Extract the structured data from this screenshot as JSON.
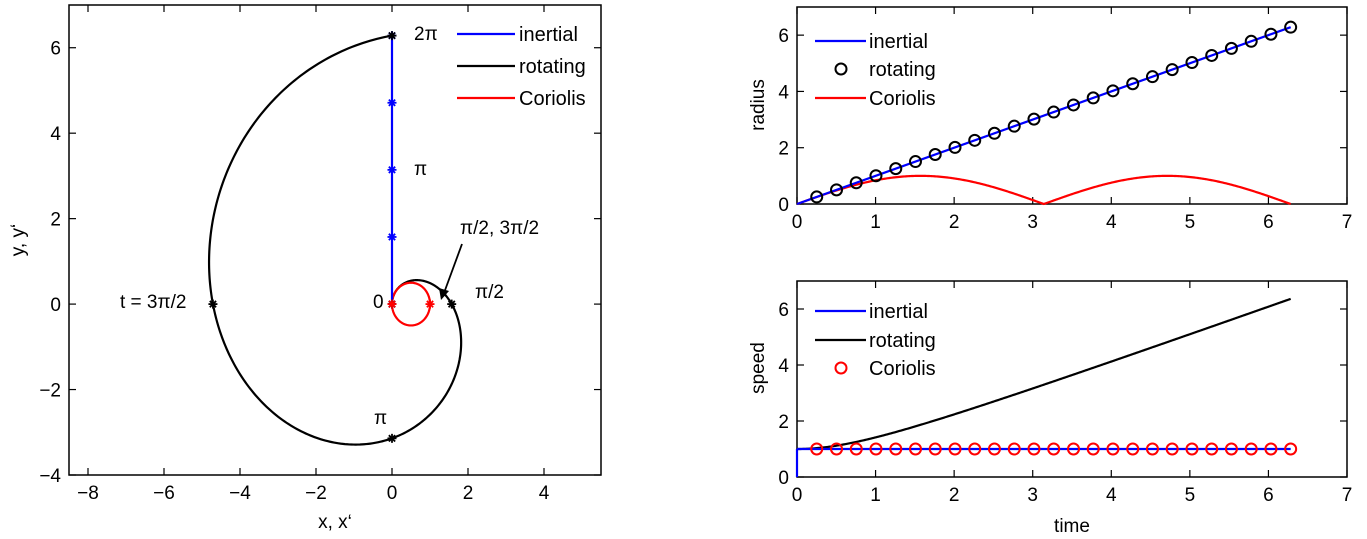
{
  "chart_data": [
    {
      "type": "line",
      "name": "trajectory",
      "xlabel": "x, x‘",
      "ylabel": "y, y‘",
      "xlim": [
        -8.5,
        5.5
      ],
      "ylim": [
        -4,
        7
      ],
      "xticks": [
        -8,
        -6,
        -4,
        -2,
        0,
        2,
        4
      ],
      "yticks": [
        -4,
        -2,
        0,
        2,
        4,
        6
      ],
      "grid": false,
      "legend_position": "top-right",
      "legend": [
        "inertial",
        "rotating",
        "Coriolis"
      ],
      "colors": {
        "inertial": "#0000ff",
        "rotating": "#000000",
        "Coriolis": "#ff0000"
      },
      "series": [
        {
          "name": "inertial",
          "description_equation": "x = 0, y = t, 0 ≤ t ≤ 2π",
          "markers_t": [
            0,
            1.5708,
            3.1416,
            4.7124,
            6.2832
          ],
          "markers": [
            [
              0,
              0
            ],
            [
              0,
              1.571
            ],
            [
              0,
              3.142
            ],
            [
              0,
              4.712
            ],
            [
              0,
              6.283
            ]
          ]
        },
        {
          "name": "rotating",
          "equation": "x' = t sin t, y' = t cos t, 0 ≤ t ≤ 2π",
          "markers": [
            [
              0,
              0
            ],
            [
              1.571,
              0
            ],
            [
              0,
              -3.142
            ],
            [
              -4.712,
              0
            ],
            [
              0,
              6.283
            ]
          ]
        },
        {
          "name": "Coriolis",
          "equation": "x' = sin² t, y' = sin t cos t (circle centre (0.5,0), r=0.5)",
          "markers": [
            [
              0,
              0
            ],
            [
              1,
              0
            ]
          ]
        }
      ],
      "annotations": [
        "2π",
        "π",
        "π/2, 3π/2",
        "0",
        "π/2",
        "t = 3π/2",
        "π"
      ]
    },
    {
      "type": "line",
      "name": "radius",
      "xlabel": "",
      "ylabel": "radius",
      "xlim": [
        0,
        7
      ],
      "ylim": [
        0,
        7
      ],
      "xticks": [
        0,
        1,
        2,
        3,
        4,
        5,
        6,
        7
      ],
      "yticks": [
        0,
        2,
        4,
        6
      ],
      "legend_position": "top-left",
      "legend": [
        "inertial",
        "rotating",
        "Coriolis"
      ],
      "series": [
        {
          "name": "inertial",
          "equation": "r = t, 0 ≤ t ≤ 2π"
        },
        {
          "name": "rotating",
          "marker": "circle",
          "x": [
            0.251,
            0.503,
            0.754,
            1.005,
            1.257,
            1.508,
            1.759,
            2.011,
            2.262,
            2.513,
            2.765,
            3.016,
            3.267,
            3.519,
            3.77,
            4.021,
            4.273,
            4.524,
            4.775,
            5.027,
            5.278,
            5.529,
            5.781,
            6.032,
            6.283
          ],
          "values": [
            0.251,
            0.503,
            0.754,
            1.005,
            1.257,
            1.508,
            1.759,
            2.011,
            2.262,
            2.513,
            2.765,
            3.016,
            3.267,
            3.519,
            3.77,
            4.021,
            4.273,
            4.524,
            4.775,
            5.027,
            5.278,
            5.529,
            5.781,
            6.032,
            6.283
          ]
        },
        {
          "name": "Coriolis",
          "equation": "r = |sin t|, 0 ≤ t ≤ 2π"
        }
      ]
    },
    {
      "type": "line",
      "name": "speed",
      "xlabel": "time",
      "ylabel": "speed",
      "xlim": [
        0,
        7
      ],
      "ylim": [
        0,
        7
      ],
      "xticks": [
        0,
        1,
        2,
        3,
        4,
        5,
        6,
        7
      ],
      "yticks": [
        0,
        2,
        4,
        6
      ],
      "legend_position": "top-left",
      "legend": [
        "inertial",
        "rotating",
        "Coriolis"
      ],
      "series": [
        {
          "name": "inertial",
          "equation": "v = 1, 0 ≤ t ≤ 2π"
        },
        {
          "name": "rotating",
          "equation": "v = sqrt(1 + t²), 0 ≤ t ≤ 2π"
        },
        {
          "name": "Coriolis",
          "marker": "circle",
          "x": [
            0.251,
            0.503,
            0.754,
            1.005,
            1.257,
            1.508,
            1.759,
            2.011,
            2.262,
            2.513,
            2.765,
            3.016,
            3.267,
            3.519,
            3.77,
            4.021,
            4.273,
            4.524,
            4.775,
            5.027,
            5.278,
            5.529,
            5.781,
            6.032,
            6.283
          ],
          "values": [
            1,
            1,
            1,
            1,
            1,
            1,
            1,
            1,
            1,
            1,
            1,
            1,
            1,
            1,
            1,
            1,
            1,
            1,
            1,
            1,
            1,
            1,
            1,
            1,
            1
          ]
        }
      ]
    }
  ]
}
